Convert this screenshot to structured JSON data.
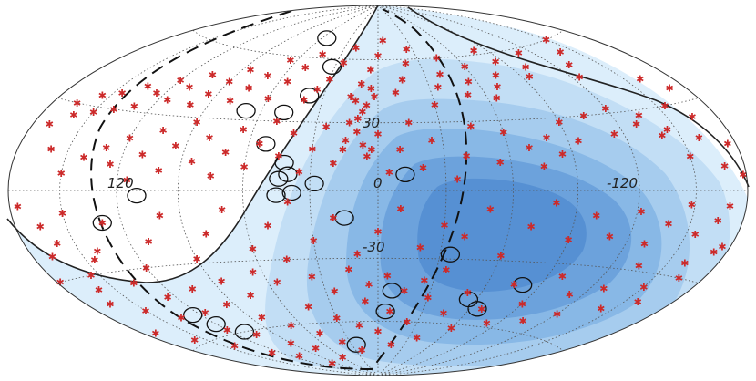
{
  "chart_data": {
    "type": "scatter",
    "projection": "hammer-aitoff",
    "grid": true,
    "longitude_tick_labels": [
      "120",
      "0",
      "-120"
    ],
    "latitude_tick_labels": [
      "30",
      "-30"
    ],
    "colors": {
      "exposure_levels": [
        "#dceefb",
        "#c2def5",
        "#a6ccee",
        "#88b8e6",
        "#6ca2dc",
        "#5690d3"
      ],
      "event_marker": "#cc2a2a",
      "grid": "#555555",
      "outline": "#333333"
    },
    "events": [
      [
        150,
        60
      ],
      [
        140,
        55
      ],
      [
        130,
        50
      ],
      [
        125,
        45
      ],
      [
        160,
        40
      ],
      [
        110,
        58
      ],
      [
        100,
        52
      ],
      [
        95,
        48
      ],
      [
        85,
        56
      ],
      [
        80,
        62
      ],
      [
        75,
        50
      ],
      [
        70,
        45
      ],
      [
        65,
        40
      ],
      [
        60,
        55
      ],
      [
        55,
        48
      ],
      [
        50,
        42
      ],
      [
        45,
        60
      ],
      [
        40,
        52
      ],
      [
        35,
        46
      ],
      [
        30,
        38
      ],
      [
        25,
        65
      ],
      [
        20,
        58
      ],
      [
        15,
        50
      ],
      [
        10,
        44
      ],
      [
        5,
        70
      ],
      [
        0,
        62
      ],
      [
        -5,
        55
      ],
      [
        -10,
        48
      ],
      [
        -15,
        42
      ],
      [
        -20,
        66
      ],
      [
        -25,
        58
      ],
      [
        -30,
        50
      ],
      [
        -35,
        45
      ],
      [
        -40,
        40
      ],
      [
        -45,
        62
      ],
      [
        -50,
        55
      ],
      [
        -55,
        48
      ],
      [
        -60,
        40
      ],
      [
        -65,
        58
      ],
      [
        -70,
        50
      ],
      [
        -75,
        44
      ],
      [
        -80,
        38
      ],
      [
        -85,
        52
      ],
      [
        -90,
        46
      ],
      [
        -95,
        40
      ],
      [
        -100,
        35
      ],
      [
        -105,
        48
      ],
      [
        -110,
        42
      ],
      [
        -115,
        36
      ],
      [
        -120,
        44
      ],
      [
        -125,
        38
      ],
      [
        -130,
        32
      ],
      [
        -135,
        40
      ],
      [
        -140,
        30
      ],
      [
        -145,
        36
      ],
      [
        -150,
        28
      ],
      [
        -155,
        34
      ],
      [
        -160,
        26
      ],
      [
        -165,
        30
      ],
      [
        -170,
        22
      ],
      [
        170,
        35
      ],
      [
        165,
        25
      ],
      [
        155,
        30
      ],
      [
        145,
        22
      ],
      [
        135,
        28
      ],
      [
        175,
        15
      ],
      [
        168,
        8
      ],
      [
        160,
        18
      ],
      [
        150,
        12
      ],
      [
        140,
        20
      ],
      [
        130,
        25
      ],
      [
        120,
        32
      ],
      [
        115,
        22
      ],
      [
        105,
        30
      ],
      [
        95,
        20
      ],
      [
        90,
        28
      ],
      [
        85,
        15
      ],
      [
        80,
        22
      ],
      [
        75,
        10
      ],
      [
        70,
        18
      ],
      [
        60,
        25
      ],
      [
        55,
        12
      ],
      [
        45,
        28
      ],
      [
        40,
        15
      ],
      [
        35,
        5
      ],
      [
        25,
        22
      ],
      [
        20,
        10
      ],
      [
        15,
        30
      ],
      [
        10,
        18
      ],
      [
        5,
        8
      ],
      [
        0,
        25
      ],
      [
        -5,
        15
      ],
      [
        -10,
        32
      ],
      [
        -15,
        22
      ],
      [
        -20,
        12
      ],
      [
        -25,
        28
      ],
      [
        -30,
        18
      ],
      [
        -35,
        8
      ],
      [
        -40,
        25
      ],
      [
        -45,
        15
      ],
      [
        -50,
        30
      ],
      [
        -55,
        20
      ],
      [
        -60,
        10
      ],
      [
        -65,
        26
      ],
      [
        -70,
        16
      ],
      [
        -75,
        6
      ],
      [
        -80,
        22
      ],
      [
        -85,
        12
      ],
      [
        -90,
        28
      ],
      [
        -95,
        18
      ],
      [
        -100,
        8
      ],
      [
        -105,
        24
      ],
      [
        -110,
        14
      ],
      [
        -115,
        4
      ],
      [
        -120,
        20
      ],
      [
        -125,
        10
      ],
      [
        -130,
        16
      ],
      [
        -140,
        12
      ],
      [
        -150,
        6
      ],
      [
        -160,
        14
      ],
      [
        172,
        -20
      ],
      [
        165,
        -30
      ],
      [
        158,
        -40
      ],
      [
        150,
        -35
      ],
      [
        142,
        -45
      ],
      [
        135,
        -28
      ],
      [
        128,
        -38
      ],
      [
        120,
        -50
      ],
      [
        112,
        -42
      ],
      [
        105,
        -55
      ],
      [
        98,
        -35
      ],
      [
        90,
        -48
      ],
      [
        82,
        -58
      ],
      [
        75,
        -40
      ],
      [
        68,
        -52
      ],
      [
        60,
        -62
      ],
      [
        52,
        -45
      ],
      [
        45,
        -55
      ],
      [
        38,
        -68
      ],
      [
        30,
        -48
      ],
      [
        22,
        -60
      ],
      [
        15,
        -72
      ],
      [
        8,
        -55
      ],
      [
        0,
        -65
      ],
      [
        -8,
        -50
      ],
      [
        -15,
        -62
      ],
      [
        -22,
        -75
      ],
      [
        -30,
        -58
      ],
      [
        -38,
        -70
      ],
      [
        -45,
        -52
      ],
      [
        -52,
        -65
      ],
      [
        -60,
        -78
      ],
      [
        -68,
        -60
      ],
      [
        -75,
        -72
      ],
      [
        -82,
        -55
      ],
      [
        -90,
        -68
      ],
      [
        -98,
        -80
      ],
      [
        -105,
        -62
      ],
      [
        -112,
        -74
      ],
      [
        -120,
        -58
      ],
      [
        -128,
        -70
      ],
      [
        -135,
        -50
      ],
      [
        -142,
        -64
      ],
      [
        -150,
        -45
      ],
      [
        -158,
        -58
      ],
      [
        -165,
        -40
      ],
      [
        -172,
        -52
      ],
      [
        -178,
        -30
      ],
      [
        -168,
        -22
      ],
      [
        -160,
        -35
      ],
      [
        30,
        -15
      ],
      [
        20,
        -25
      ],
      [
        10,
        -8
      ],
      [
        0,
        -18
      ],
      [
        -10,
        -28
      ],
      [
        -20,
        -12
      ],
      [
        -30,
        -22
      ],
      [
        -40,
        -5
      ],
      [
        -50,
        -15
      ],
      [
        -60,
        -25
      ],
      [
        -70,
        -8
      ],
      [
        -80,
        -18
      ],
      [
        -90,
        -28
      ],
      [
        -100,
        -10
      ],
      [
        -110,
        -20
      ],
      [
        -120,
        -30
      ],
      [
        -130,
        -12
      ],
      [
        -140,
        -22
      ],
      [
        -150,
        -8
      ],
      [
        -160,
        -18
      ],
      [
        100,
        -10
      ],
      [
        90,
        -20
      ],
      [
        80,
        -5
      ],
      [
        70,
        -15
      ],
      [
        60,
        -28
      ],
      [
        50,
        -8
      ],
      [
        40,
        -20
      ],
      [
        35,
        -35
      ],
      [
        25,
        -40
      ],
      [
        15,
        -45
      ],
      [
        5,
        -38
      ],
      [
        -5,
        -42
      ],
      [
        -15,
        -35
      ],
      [
        -25,
        -45
      ],
      [
        -35,
        -38
      ],
      [
        -45,
        -30
      ],
      [
        -55,
        -40
      ],
      [
        -65,
        -35
      ],
      [
        -75,
        -45
      ],
      [
        -85,
        -38
      ],
      [
        -95,
        -48
      ],
      [
        -105,
        -40
      ],
      [
        -115,
        -50
      ],
      [
        -125,
        -42
      ],
      [
        -135,
        -35
      ],
      [
        -145,
        -25
      ],
      [
        -155,
        -30
      ],
      [
        -165,
        -12
      ],
      [
        -175,
        -5
      ],
      [
        178,
        5
      ],
      [
        -2,
        42
      ],
      [
        -6,
        38
      ],
      [
        -8,
        35
      ],
      [
        -12,
        40
      ],
      [
        -4,
        46
      ],
      [
        -14,
        30
      ],
      [
        -10,
        26
      ],
      [
        -7,
        20
      ],
      [
        -3,
        18
      ],
      [
        -16,
        18
      ],
      [
        165,
        -10
      ],
      [
        170,
        -5
      ],
      [
        175,
        -18
      ],
      [
        160,
        -25
      ],
      [
        155,
        -15
      ],
      [
        148,
        -5
      ],
      [
        138,
        -12
      ],
      [
        130,
        -20
      ],
      [
        122,
        -8
      ],
      [
        110,
        -18
      ]
    ],
    "circles": [
      [
        -55,
        70
      ],
      [
        -32,
        56
      ],
      [
        -38,
        42
      ],
      [
        -48,
        34
      ],
      [
        -68,
        34
      ],
      [
        -52,
        20
      ],
      [
        -42,
        12
      ],
      [
        -44,
        5
      ],
      [
        -45,
        -2
      ],
      [
        -38,
        -1
      ],
      [
        -40,
        7
      ],
      [
        -28,
        3
      ],
      [
        -110,
        -2
      ],
      [
        -130,
        -12
      ],
      [
        12,
        7
      ],
      [
        -15,
        -12
      ],
      [
        35,
        -28
      ],
      [
        65,
        -52
      ],
      [
        55,
        -48
      ],
      [
        80,
        -40
      ],
      [
        5,
        -55
      ],
      [
        8,
        -45
      ],
      [
        -25,
        -72
      ],
      [
        -110,
        -60
      ],
      [
        -120,
        -55
      ],
      [
        -125,
        -50
      ]
    ]
  }
}
